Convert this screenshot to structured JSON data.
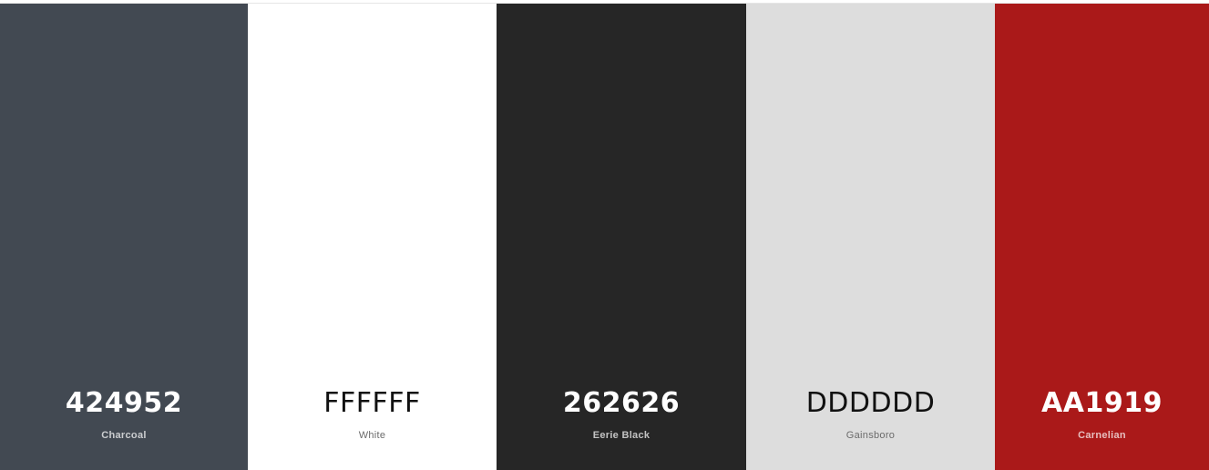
{
  "palette": {
    "swatches": [
      {
        "hex": "424952",
        "name": "Charcoal",
        "color": "#424952",
        "tone": "dark"
      },
      {
        "hex": "FFFFFF",
        "name": "White",
        "color": "#FFFFFF",
        "tone": "light"
      },
      {
        "hex": "262626",
        "name": "Eerie Black",
        "color": "#262626",
        "tone": "dark"
      },
      {
        "hex": "DDDDDD",
        "name": "Gainsboro",
        "color": "#DDDDDD",
        "tone": "light"
      },
      {
        "hex": "AA1919",
        "name": "Carnelian",
        "color": "#AA1919",
        "tone": "dark"
      }
    ]
  }
}
